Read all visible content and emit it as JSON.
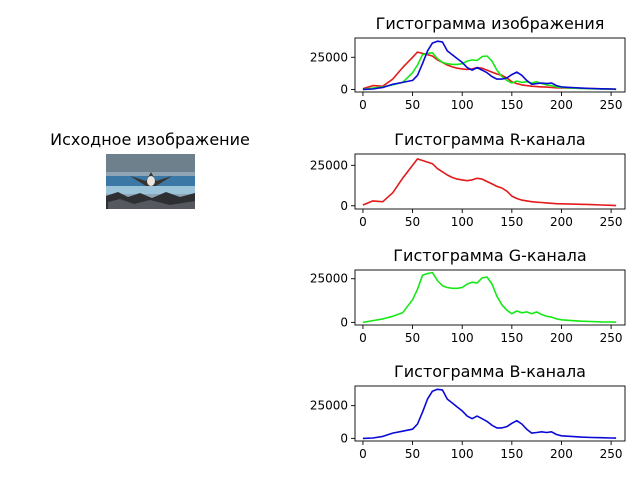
{
  "figure": {
    "source_title": "Исходное изображение",
    "source_image_name": "bird-over-water-photo"
  },
  "chart_data": [
    {
      "type": "line",
      "title": "Гистограмма изображения",
      "xlim": [
        -8,
        264
      ],
      "ylim": [
        -2000,
        40000
      ],
      "xticks": [
        0,
        50,
        100,
        150,
        200,
        250
      ],
      "yticks": [
        0,
        25000
      ],
      "x": [
        0,
        10,
        20,
        30,
        40,
        50,
        55,
        60,
        65,
        70,
        75,
        80,
        85,
        90,
        95,
        100,
        105,
        110,
        115,
        120,
        125,
        130,
        135,
        140,
        145,
        150,
        155,
        160,
        165,
        170,
        175,
        180,
        185,
        190,
        195,
        200,
        210,
        220,
        230,
        240,
        250,
        255
      ],
      "series": [
        {
          "name": "R",
          "color": "#e31a1c",
          "values": [
            500,
            3000,
            2500,
            8000,
            17000,
            25000,
            29000,
            28000,
            27000,
            26000,
            23000,
            21000,
            19000,
            17500,
            16500,
            16000,
            15500,
            16000,
            17000,
            16500,
            15000,
            13500,
            12000,
            11000,
            9000,
            6000,
            4500,
            3500,
            3000,
            2500,
            2200,
            2000,
            1800,
            1500,
            1300,
            1200,
            1000,
            900,
            700,
            500,
            300,
            100
          ]
        },
        {
          "name": "G",
          "color": "#16e816",
          "values": [
            0,
            1000,
            2000,
            3500,
            5500,
            13000,
            19000,
            27000,
            28000,
            28500,
            24000,
            21000,
            20000,
            19500,
            19500,
            20000,
            22000,
            23000,
            22500,
            25500,
            26000,
            22000,
            15000,
            10000,
            7000,
            5000,
            6500,
            5500,
            6000,
            5000,
            6000,
            4500,
            3500,
            3000,
            2000,
            1500,
            1000,
            700,
            500,
            300,
            200,
            100
          ]
        },
        {
          "name": "B",
          "color": "#0a0ad6",
          "values": [
            0,
            300,
            1500,
            4000,
            5500,
            7000,
            11000,
            20000,
            30000,
            36000,
            37500,
            37000,
            30000,
            27000,
            24000,
            21000,
            17000,
            15000,
            17000,
            15000,
            13000,
            10000,
            8000,
            8000,
            9000,
            11500,
            13500,
            11000,
            7000,
            4000,
            4500,
            5000,
            4500,
            5000,
            3000,
            2000,
            1500,
            1000,
            700,
            500,
            300,
            200
          ]
        }
      ]
    },
    {
      "type": "line",
      "title": "Гистограмма R-канала",
      "xlim": [
        -8,
        264
      ],
      "ylim": [
        -2000,
        32000
      ],
      "xticks": [
        0,
        50,
        100,
        150,
        200,
        250
      ],
      "yticks": [
        0,
        25000
      ],
      "x": [
        0,
        10,
        20,
        30,
        40,
        50,
        55,
        60,
        65,
        70,
        75,
        80,
        85,
        90,
        95,
        100,
        105,
        110,
        115,
        120,
        125,
        130,
        135,
        140,
        145,
        150,
        155,
        160,
        165,
        170,
        175,
        180,
        185,
        190,
        195,
        200,
        210,
        220,
        230,
        240,
        250,
        255
      ],
      "series": [
        {
          "name": "R",
          "color": "#e31a1c",
          "values": [
            500,
            3000,
            2500,
            8000,
            17000,
            25000,
            29000,
            28000,
            27000,
            26000,
            23000,
            21000,
            19000,
            17500,
            16500,
            16000,
            15500,
            16000,
            17000,
            16500,
            15000,
            13500,
            12000,
            11000,
            9000,
            6000,
            4500,
            3500,
            3000,
            2500,
            2200,
            2000,
            1800,
            1500,
            1300,
            1200,
            1000,
            900,
            700,
            500,
            300,
            100
          ]
        }
      ]
    },
    {
      "type": "line",
      "title": "Гистограмма G-канала",
      "xlim": [
        -8,
        264
      ],
      "ylim": [
        -1500,
        30000
      ],
      "xticks": [
        0,
        50,
        100,
        150,
        200,
        250
      ],
      "yticks": [
        0,
        25000
      ],
      "x": [
        0,
        10,
        20,
        30,
        40,
        50,
        55,
        60,
        65,
        70,
        75,
        80,
        85,
        90,
        95,
        100,
        105,
        110,
        115,
        120,
        125,
        130,
        135,
        140,
        145,
        150,
        155,
        160,
        165,
        170,
        175,
        180,
        185,
        190,
        195,
        200,
        210,
        220,
        230,
        240,
        250,
        255
      ],
      "series": [
        {
          "name": "G",
          "color": "#16e816",
          "values": [
            0,
            1000,
            2000,
            3500,
            5500,
            13000,
            19000,
            27000,
            28000,
            28500,
            24000,
            21000,
            20000,
            19500,
            19500,
            20000,
            22000,
            23000,
            22500,
            25500,
            26000,
            22000,
            15000,
            10000,
            7000,
            5000,
            6500,
            5500,
            6000,
            5000,
            6000,
            4500,
            3500,
            3000,
            2000,
            1500,
            1000,
            700,
            500,
            300,
            200,
            100
          ]
        }
      ]
    },
    {
      "type": "line",
      "title": "Гистограмма B-канала",
      "xlim": [
        -8,
        264
      ],
      "ylim": [
        -2000,
        40000
      ],
      "xticks": [
        0,
        50,
        100,
        150,
        200,
        250
      ],
      "yticks": [
        0,
        25000
      ],
      "x": [
        0,
        10,
        20,
        30,
        40,
        50,
        55,
        60,
        65,
        70,
        75,
        80,
        85,
        90,
        95,
        100,
        105,
        110,
        115,
        120,
        125,
        130,
        135,
        140,
        145,
        150,
        155,
        160,
        165,
        170,
        175,
        180,
        185,
        190,
        195,
        200,
        210,
        220,
        230,
        240,
        250,
        255
      ],
      "series": [
        {
          "name": "B",
          "color": "#0a0ad6",
          "values": [
            0,
            300,
            1500,
            4000,
            5500,
            7000,
            11000,
            20000,
            30000,
            36000,
            37500,
            37000,
            30000,
            27000,
            24000,
            21000,
            17000,
            15000,
            17000,
            15000,
            13000,
            10000,
            8000,
            8000,
            9000,
            11500,
            13500,
            11000,
            7000,
            4000,
            4500,
            5000,
            4500,
            5000,
            3000,
            2000,
            1500,
            1000,
            700,
            500,
            300,
            200
          ]
        }
      ]
    }
  ]
}
